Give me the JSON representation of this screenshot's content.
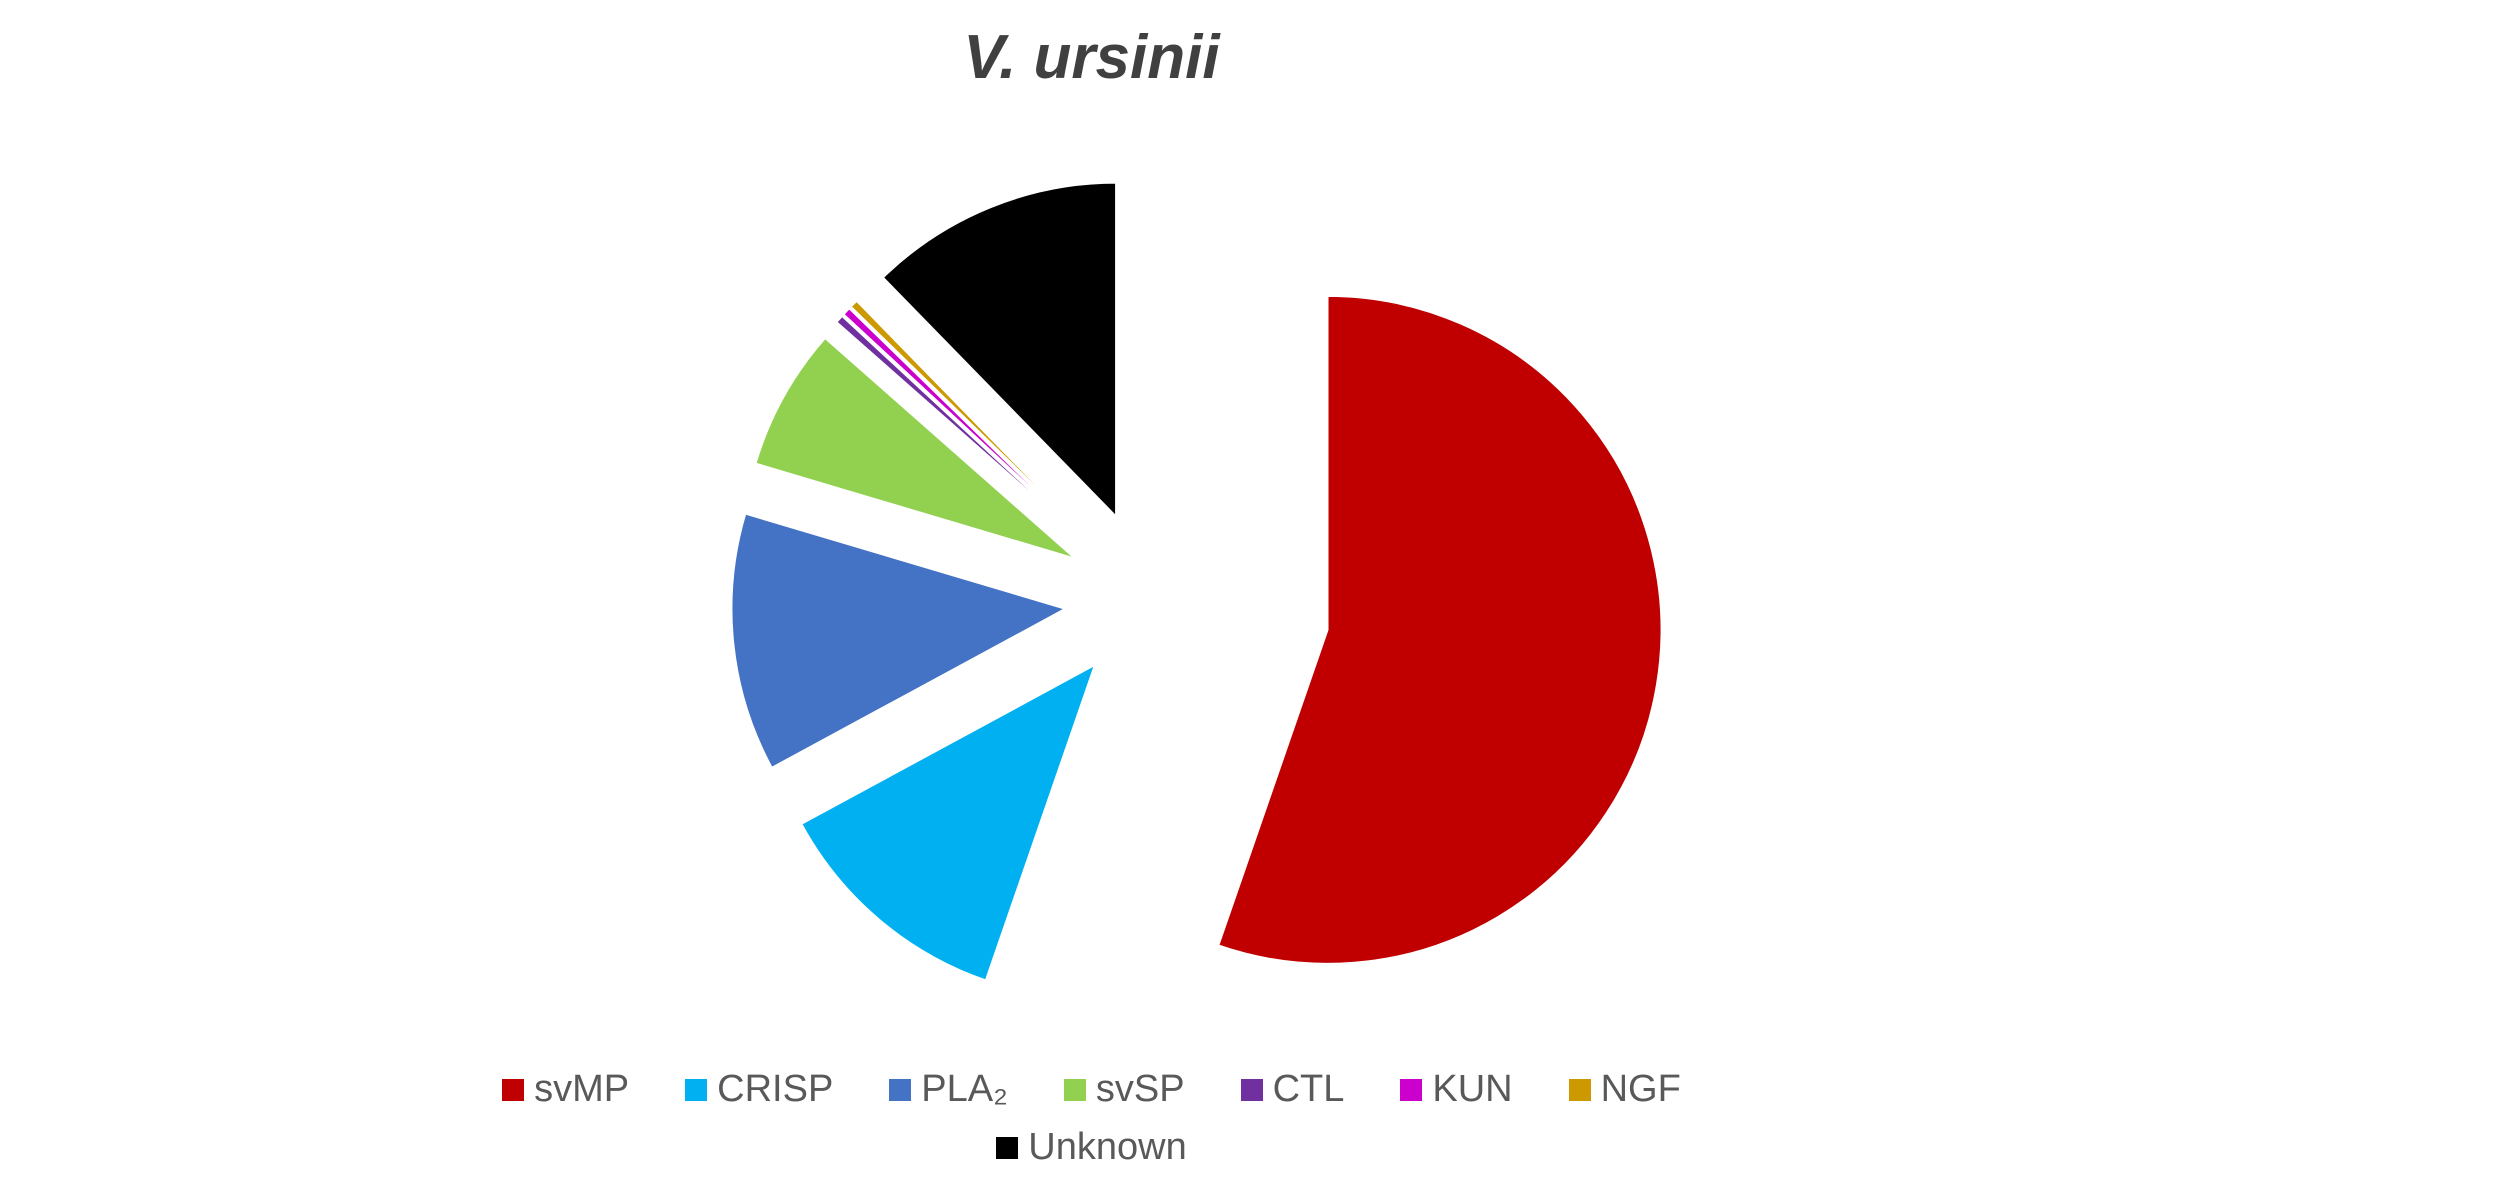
{
  "chart_data": {
    "type": "pie",
    "title": "V. ursinii",
    "exploded": true,
    "legend_position": "bottom",
    "slices": [
      {
        "label": "svMP",
        "value": 55.3,
        "color": "#C00000"
      },
      {
        "label": "CRISP",
        "value": 11.8,
        "color": "#00B0F0"
      },
      {
        "label": "PLA₂",
        "value": 12.5,
        "color": "#4472C4"
      },
      {
        "label": "svSP",
        "value": 6.9,
        "color": "#92D050"
      },
      {
        "label": "CTL",
        "value": 0.4,
        "color": "#7030A0"
      },
      {
        "label": "KUN",
        "value": 0.4,
        "color": "#CC00CC"
      },
      {
        "label": "NGF",
        "value": 0.4,
        "color": "#CC9900"
      },
      {
        "label": "Unknown",
        "value": 12.3,
        "color": "#000000"
      }
    ]
  }
}
